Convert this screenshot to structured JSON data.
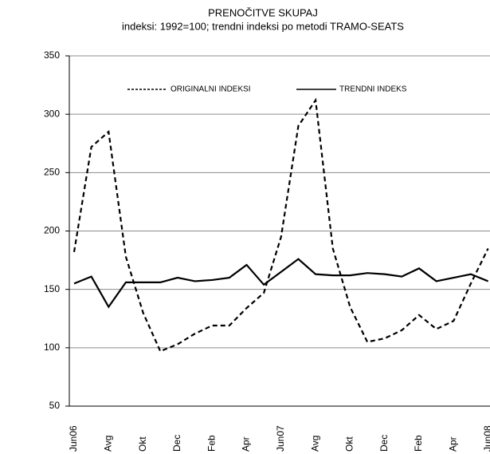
{
  "chart_data": {
    "type": "line",
    "title": "PRENOČITVE SKUPAJ",
    "subtitle": "indeksi: 1992=100; trendni indeksi po metodi TRAMO-SEATS",
    "categories": [
      "Jun06",
      null,
      "Avg",
      null,
      "Okt",
      null,
      "Dec",
      null,
      "Feb",
      null,
      "Apr",
      null,
      "Jun07",
      null,
      "Avg",
      null,
      "Okt",
      null,
      "Dec",
      null,
      "Feb",
      null,
      "Apr",
      null,
      "Jun08"
    ],
    "series": [
      {
        "name": "ORIGINALNI INDEKSI",
        "color": "#000000",
        "dash": true,
        "values": [
          182,
          272,
          285,
          178,
          130,
          97,
          103,
          112,
          119,
          119,
          134,
          147,
          195,
          290,
          312,
          185,
          135,
          105,
          108,
          115,
          128,
          116,
          123,
          155,
          185
        ]
      },
      {
        "name": "TRENDNI INDEKS",
        "color": "#000000",
        "dash": false,
        "values": [
          155,
          161,
          135,
          156,
          156,
          156,
          160,
          157,
          158,
          160,
          171,
          154,
          165,
          176,
          163,
          162,
          162,
          164,
          163,
          161,
          168,
          157,
          160,
          163,
          157
        ]
      }
    ],
    "ylim": [
      50,
      350
    ],
    "yticks": [
      50,
      100,
      150,
      200,
      250,
      300,
      350
    ],
    "grid": true,
    "legend": "top"
  }
}
